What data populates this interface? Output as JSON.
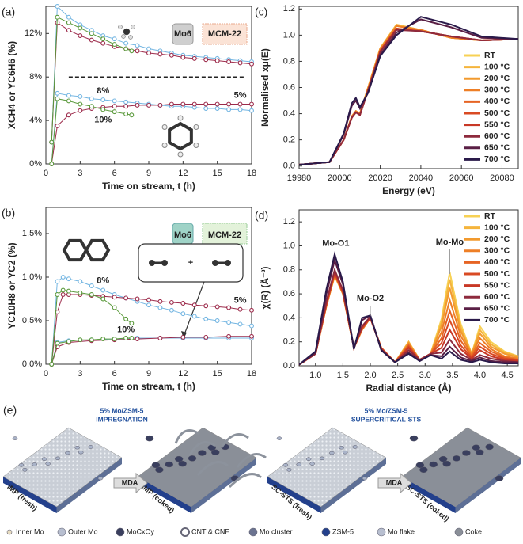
{
  "chart_data": [
    {
      "type": "line",
      "panel": "(a)",
      "x_label": "Time on stream, t (h)",
      "y_label": "XCH4 or YC6H6 (%)",
      "xlim": [
        0,
        18
      ],
      "xticks": [
        0,
        3,
        6,
        9,
        12,
        15,
        18
      ],
      "ylim": [
        0,
        14.5
      ],
      "yticks": [
        {
          "value": 0,
          "label": "0%"
        },
        {
          "value": 4,
          "label": "4%"
        },
        {
          "value": 8,
          "label": "8%"
        },
        {
          "value": 12,
          "label": "12%"
        }
      ],
      "markers": true,
      "labels": [
        "Mo6",
        "MCM-22"
      ],
      "reference_line": {
        "y": 8,
        "x": [
          2,
          17.5
        ]
      },
      "series": [
        {
          "color": "#74b6e2",
          "x": [
            0.5,
            1,
            2,
            3,
            4,
            5,
            6,
            7,
            8,
            9,
            10,
            11,
            12,
            13,
            14,
            15,
            16,
            17,
            18
          ],
          "values": [
            2,
            14.5,
            13.5,
            12.8,
            12.3,
            11.8,
            11.5,
            11.1,
            10.9,
            10.6,
            10.4,
            10.2,
            10.0,
            9.9,
            9.8,
            9.7,
            9.6,
            9.5,
            9.4
          ]
        },
        {
          "color": "#9c2a4a",
          "x": [
            0.5,
            1,
            2,
            3,
            4,
            5,
            6,
            7,
            8,
            9,
            10,
            11,
            12,
            13,
            14,
            15,
            16,
            17,
            18
          ],
          "values": [
            2,
            13,
            12.3,
            11.8,
            11.4,
            11.1,
            10.8,
            10.6,
            10.4,
            10.2,
            10.1,
            10.0,
            9.8,
            9.7,
            9.6,
            9.5,
            9.4,
            9.3,
            9.2
          ]
        },
        {
          "color": "#5b9a3c",
          "x": [
            0.5,
            1,
            2,
            3,
            4,
            5,
            6,
            7,
            7.5
          ],
          "values": [
            2,
            13.5,
            13,
            12.5,
            12.0,
            11.5,
            11.0,
            10.6,
            10.4
          ]
        },
        {
          "name": "8%",
          "color": "#74b6e2",
          "x": [
            0.5,
            1,
            2,
            3,
            4,
            5,
            6,
            7,
            8,
            9,
            10,
            11,
            12,
            13,
            14,
            15,
            16,
            17,
            18
          ],
          "values": [
            0,
            6.5,
            6.3,
            6.2,
            6.0,
            5.9,
            5.8,
            5.7,
            5.6,
            5.5,
            5.4,
            5.3,
            5.3,
            5.2,
            5.1,
            5.1,
            5.0,
            5.0,
            4.9
          ]
        },
        {
          "name": "5%",
          "color": "#9c2a4a",
          "x": [
            0.5,
            1,
            2,
            3,
            4,
            5,
            6,
            7,
            8,
            9,
            10,
            11,
            12,
            13,
            14,
            15,
            16,
            17,
            18
          ],
          "values": [
            0,
            3.5,
            4.5,
            4.9,
            5.1,
            5.2,
            5.3,
            5.3,
            5.4,
            5.4,
            5.4,
            5.5,
            5.5,
            5.5,
            5.5,
            5.5,
            5.5,
            5.5,
            5.5
          ]
        },
        {
          "name": "10%",
          "color": "#5b9a3c",
          "x": [
            0.5,
            1,
            2,
            3,
            4,
            5,
            6,
            7,
            7.5
          ],
          "values": [
            0,
            6,
            5.8,
            5.5,
            5.3,
            5.0,
            4.8,
            4.6,
            4.5
          ]
        }
      ]
    },
    {
      "type": "line",
      "panel": "(b)",
      "x_label": "Time on stream, t (h)",
      "y_label": "YC10H8 or YC2 (%)",
      "xlim": [
        0,
        18
      ],
      "xticks": [
        0,
        3,
        6,
        9,
        12,
        15,
        18
      ],
      "ylim": [
        0,
        1.8
      ],
      "yticks": [
        {
          "value": 0,
          "label": "0,0%"
        },
        {
          "value": 0.5,
          "label": "0,5%"
        },
        {
          "value": 1,
          "label": "1,0%"
        },
        {
          "value": 1.5,
          "label": "1,5%"
        }
      ],
      "markers": true,
      "labels": [
        "Mo6",
        "MCM-22"
      ],
      "series": [
        {
          "name": "8%",
          "color": "#74b6e2",
          "x": [
            0.5,
            1,
            1.5,
            2,
            3,
            4,
            5,
            6,
            7,
            8,
            9,
            10,
            11,
            12,
            13,
            14,
            15,
            16,
            17,
            18
          ],
          "values": [
            0,
            0.95,
            1.0,
            0.98,
            0.95,
            0.9,
            0.85,
            0.8,
            0.76,
            0.72,
            0.68,
            0.65,
            0.62,
            0.58,
            0.55,
            0.52,
            0.5,
            0.48,
            0.46,
            0.44
          ]
        },
        {
          "name": "5%",
          "color": "#9c2a4a",
          "x": [
            0.5,
            1,
            1.5,
            2,
            3,
            4,
            5,
            6,
            7,
            8,
            9,
            10,
            11,
            12,
            13,
            14,
            15,
            16,
            17,
            18
          ],
          "values": [
            0,
            0.6,
            0.8,
            0.8,
            0.8,
            0.79,
            0.78,
            0.77,
            0.76,
            0.75,
            0.74,
            0.72,
            0.71,
            0.7,
            0.68,
            0.67,
            0.66,
            0.65,
            0.63,
            0.62
          ]
        },
        {
          "name": "10%",
          "color": "#5b9a3c",
          "x": [
            0.5,
            1,
            1.5,
            2,
            3,
            4,
            5,
            6,
            7,
            7.5
          ],
          "values": [
            0,
            0.8,
            0.85,
            0.84,
            0.82,
            0.8,
            0.75,
            0.65,
            0.52,
            0.47
          ]
        },
        {
          "color": "#74b6e2",
          "x": [
            0.5,
            1,
            2,
            4,
            6,
            8,
            10,
            12,
            14,
            16,
            18
          ],
          "values": [
            0,
            0.25,
            0.27,
            0.28,
            0.29,
            0.3,
            0.3,
            0.3,
            0.3,
            0.3,
            0.3
          ]
        },
        {
          "color": "#9c2a4a",
          "x": [
            0.5,
            1,
            2,
            4,
            6,
            8,
            10,
            12,
            14,
            16,
            18
          ],
          "values": [
            0,
            0.2,
            0.25,
            0.27,
            0.28,
            0.29,
            0.3,
            0.31,
            0.31,
            0.32,
            0.32
          ]
        },
        {
          "color": "#5b9a3c",
          "x": [
            0.5,
            1,
            2,
            3,
            4,
            5,
            6,
            7,
            7.5
          ],
          "values": [
            0,
            0.24,
            0.26,
            0.28,
            0.28,
            0.29,
            0.29,
            0.3,
            0.3
          ]
        }
      ]
    },
    {
      "type": "line",
      "panel": "(c)",
      "x_label": "Energy (eV)",
      "y_label": "Normalised xμ(E)",
      "xlim": [
        19980,
        20088
      ],
      "xticks": [
        19980,
        20000,
        20020,
        20040,
        20060,
        20080
      ],
      "ylim": [
        -0.02,
        1.22
      ],
      "yticks": [
        {
          "value": 0,
          "label": "0.0"
        },
        0.2,
        0.4,
        0.6,
        0.8,
        {
          "value": 1,
          "label": "1.0"
        },
        1.2
      ],
      "legend": "upper right",
      "x": [
        19980,
        19995,
        20002,
        20006,
        20008,
        20010,
        20014,
        20020,
        20028,
        20040,
        20055,
        20070,
        20088
      ],
      "series": [
        {
          "name": "RT",
          "color": "#f7d154",
          "values": [
            0.01,
            0.03,
            0.2,
            0.38,
            0.42,
            0.4,
            0.6,
            0.9,
            1.08,
            1.04,
            0.98,
            0.96,
            0.97
          ]
        },
        {
          "name": "100 °C",
          "color": "#f5b43c",
          "values": [
            0.01,
            0.03,
            0.2,
            0.38,
            0.42,
            0.4,
            0.6,
            0.9,
            1.08,
            1.04,
            0.98,
            0.96,
            0.97
          ]
        },
        {
          "name": "200 °C",
          "color": "#f29a2e",
          "values": [
            0.01,
            0.03,
            0.2,
            0.38,
            0.42,
            0.4,
            0.6,
            0.9,
            1.07,
            1.04,
            0.98,
            0.96,
            0.97
          ]
        },
        {
          "name": "300 °C",
          "color": "#ee7f26",
          "values": [
            0.01,
            0.03,
            0.2,
            0.38,
            0.42,
            0.4,
            0.59,
            0.89,
            1.07,
            1.04,
            0.98,
            0.96,
            0.97
          ]
        },
        {
          "name": "400 °C",
          "color": "#e66424",
          "values": [
            0.01,
            0.03,
            0.2,
            0.37,
            0.41,
            0.39,
            0.58,
            0.88,
            1.05,
            1.03,
            0.99,
            0.96,
            0.97
          ]
        },
        {
          "name": "500 °C",
          "color": "#d94a23",
          "values": [
            0.01,
            0.03,
            0.2,
            0.37,
            0.41,
            0.39,
            0.58,
            0.88,
            1.05,
            1.03,
            0.99,
            0.96,
            0.97
          ]
        },
        {
          "name": "550 °C",
          "color": "#c83826",
          "values": [
            0.01,
            0.03,
            0.2,
            0.37,
            0.41,
            0.39,
            0.58,
            0.88,
            1.05,
            1.03,
            0.99,
            0.96,
            0.97
          ]
        },
        {
          "name": "600 °C",
          "color": "#8e2a3d",
          "values": [
            0.01,
            0.03,
            0.2,
            0.37,
            0.41,
            0.39,
            0.58,
            0.87,
            1.04,
            1.03,
            0.99,
            0.96,
            0.97
          ]
        },
        {
          "name": "650 °C",
          "color": "#5a1f45",
          "values": [
            0.01,
            0.03,
            0.24,
            0.46,
            0.5,
            0.44,
            0.56,
            0.85,
            1.02,
            1.12,
            1.06,
            0.98,
            0.97
          ]
        },
        {
          "name": "700 °C",
          "color": "#2a1a4a",
          "values": [
            0.01,
            0.03,
            0.25,
            0.48,
            0.52,
            0.45,
            0.56,
            0.84,
            1.0,
            1.14,
            1.08,
            0.99,
            0.97
          ]
        }
      ]
    },
    {
      "type": "line",
      "panel": "(d)",
      "x_label": "Radial distance (Å)",
      "y_label": "χ(R) (Å⁻³)",
      "xlim": [
        0.7,
        4.7
      ],
      "xticks": [
        {
          "value": 1,
          "label": "1.0"
        },
        1.5,
        {
          "value": 2,
          "label": "2.0"
        },
        2.5,
        {
          "value": 3,
          "label": "3.0"
        },
        3.5,
        {
          "value": 4,
          "label": "4.0"
        },
        4.5
      ],
      "ylim": [
        0,
        1.3
      ],
      "yticks": [
        {
          "value": 0,
          "label": "0.0"
        },
        0.2,
        0.4,
        0.6,
        0.8,
        {
          "value": 1,
          "label": "1.0"
        },
        1.2
      ],
      "legend": "upper right",
      "annotations": [
        "Mo-O1",
        "Mo-O2",
        "Mo-Mo"
      ],
      "x": [
        0.7,
        1.0,
        1.2,
        1.35,
        1.5,
        1.7,
        1.85,
        2.0,
        2.2,
        2.45,
        2.7,
        2.9,
        3.1,
        3.3,
        3.45,
        3.65,
        3.85,
        4.0,
        4.2,
        4.45,
        4.7
      ],
      "series": [
        {
          "name": "RT",
          "color": "#f7d154",
          "values": [
            0.01,
            0.1,
            0.5,
            0.75,
            0.6,
            0.15,
            0.3,
            0.4,
            0.15,
            0.03,
            0.2,
            0.05,
            0.1,
            0.39,
            0.78,
            0.35,
            0.1,
            0.33,
            0.2,
            0.12,
            0.08
          ]
        },
        {
          "name": "100 °C",
          "color": "#f5b43c",
          "values": [
            0.01,
            0.1,
            0.5,
            0.75,
            0.6,
            0.15,
            0.3,
            0.4,
            0.15,
            0.03,
            0.2,
            0.05,
            0.1,
            0.36,
            0.72,
            0.32,
            0.1,
            0.3,
            0.18,
            0.11,
            0.08
          ]
        },
        {
          "name": "200 °C",
          "color": "#f29a2e",
          "values": [
            0.01,
            0.1,
            0.5,
            0.76,
            0.6,
            0.15,
            0.3,
            0.4,
            0.15,
            0.03,
            0.19,
            0.05,
            0.1,
            0.33,
            0.65,
            0.29,
            0.1,
            0.27,
            0.16,
            0.1,
            0.07
          ]
        },
        {
          "name": "300 °C",
          "color": "#ee7f26",
          "values": [
            0.01,
            0.1,
            0.5,
            0.76,
            0.6,
            0.15,
            0.3,
            0.4,
            0.15,
            0.03,
            0.18,
            0.05,
            0.1,
            0.28,
            0.55,
            0.25,
            0.09,
            0.23,
            0.14,
            0.08,
            0.06
          ]
        },
        {
          "name": "400 °C",
          "color": "#e66424",
          "values": [
            0.01,
            0.1,
            0.51,
            0.77,
            0.61,
            0.15,
            0.31,
            0.4,
            0.15,
            0.03,
            0.17,
            0.05,
            0.1,
            0.23,
            0.46,
            0.21,
            0.08,
            0.19,
            0.12,
            0.07,
            0.05
          ]
        },
        {
          "name": "500 °C",
          "color": "#d94a23",
          "values": [
            0.01,
            0.1,
            0.51,
            0.77,
            0.61,
            0.15,
            0.31,
            0.4,
            0.15,
            0.03,
            0.16,
            0.05,
            0.1,
            0.19,
            0.38,
            0.17,
            0.07,
            0.16,
            0.1,
            0.06,
            0.05
          ]
        },
        {
          "name": "550 °C",
          "color": "#c83826",
          "values": [
            0.01,
            0.1,
            0.52,
            0.78,
            0.62,
            0.15,
            0.32,
            0.4,
            0.14,
            0.03,
            0.15,
            0.05,
            0.1,
            0.15,
            0.3,
            0.14,
            0.06,
            0.13,
            0.08,
            0.05,
            0.04
          ]
        },
        {
          "name": "600 °C",
          "color": "#8e2a3d",
          "values": [
            0.01,
            0.1,
            0.54,
            0.8,
            0.63,
            0.15,
            0.33,
            0.41,
            0.14,
            0.03,
            0.13,
            0.05,
            0.1,
            0.11,
            0.22,
            0.1,
            0.05,
            0.09,
            0.06,
            0.04,
            0.03
          ]
        },
        {
          "name": "650 °C",
          "color": "#5a1f45",
          "values": [
            0.01,
            0.11,
            0.6,
            0.88,
            0.68,
            0.14,
            0.38,
            0.42,
            0.13,
            0.03,
            0.11,
            0.04,
            0.09,
            0.08,
            0.16,
            0.07,
            0.04,
            0.07,
            0.04,
            0.03,
            0.03
          ]
        },
        {
          "name": "700 °C",
          "color": "#2a1a4a",
          "values": [
            0.01,
            0.12,
            0.64,
            0.93,
            0.7,
            0.14,
            0.4,
            0.42,
            0.13,
            0.03,
            0.1,
            0.04,
            0.09,
            0.06,
            0.12,
            0.05,
            0.03,
            0.05,
            0.03,
            0.02,
            0.02
          ]
        }
      ]
    }
  ],
  "schematic": {
    "panel": "(e)",
    "left": {
      "title": "5% Mo/ZSM-5",
      "subtitle": "IMPREGNATION",
      "fresh": "IMP (fresh)",
      "arrow": "MDA",
      "coked": "IMP (coked)"
    },
    "right": {
      "title": "5% Mo/ZSM-5",
      "subtitle": "SUPERCRITICAL-STS",
      "fresh": "SC-STS (fresh)",
      "arrow": "MDA",
      "coked": "SC-STS (coked)"
    },
    "legend": [
      "Inner Mo",
      "Outer Mo",
      "MoCxOy",
      "CNT & CNF",
      "Mo cluster",
      "ZSM-5",
      "Mo flake",
      "Coke"
    ]
  }
}
